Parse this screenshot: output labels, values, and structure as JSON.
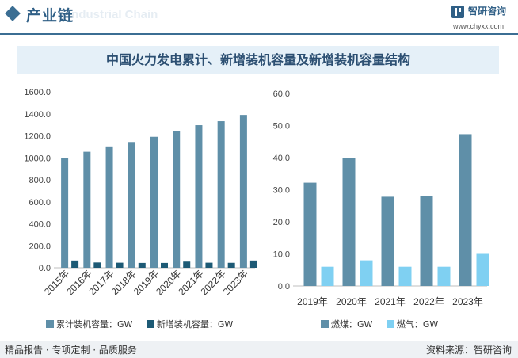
{
  "header": {
    "title": "产业链",
    "subtitle": "Industrial Chain",
    "brand": "智研咨询",
    "url": "www.chyxx.com"
  },
  "chart_title": "中国火力发电累计、新增装机容量及新增装机容量结构",
  "footer": {
    "left": "精品报告 · 专项定制 · 品质服务",
    "right": "资料来源：智研咨询"
  },
  "colors": {
    "accent": "#2f5f86",
    "bar_total": "#5f8fa8",
    "bar_new": "#1d5a75",
    "bar_coal": "#5f8fa8",
    "bar_gas": "#7fd0f2"
  },
  "chart_data": [
    {
      "type": "bar",
      "categories": [
        "2015年",
        "2016年",
        "2017年",
        "2018年",
        "2019年",
        "2020年",
        "2021年",
        "2022年",
        "2023年"
      ],
      "series": [
        {
          "name": "累计装机容量：GW",
          "values": [
            1000,
            1055,
            1104,
            1144,
            1191,
            1246,
            1297,
            1333,
            1390
          ]
        },
        {
          "name": "新增装机容量：GW",
          "values": [
            66,
            48,
            46,
            44,
            44,
            56,
            46,
            45,
            66
          ]
        }
      ],
      "yticks": [
        "0.0",
        "200.0",
        "400.0",
        "600.0",
        "800.0",
        "1000.0",
        "1200.0",
        "1400.0",
        "1600.0"
      ],
      "ylim": [
        0,
        1600
      ],
      "grid": false,
      "legend": "bottom"
    },
    {
      "type": "bar",
      "categories": [
        "2019年",
        "2020年",
        "2021年",
        "2022年",
        "2023年"
      ],
      "series": [
        {
          "name": "燃煤：GW",
          "values": [
            32.2,
            40.0,
            27.8,
            28.0,
            47.3
          ]
        },
        {
          "name": "燃气：GW",
          "values": [
            6.0,
            8.0,
            6.0,
            6.0,
            10.0
          ]
        }
      ],
      "yticks": [
        "0.0",
        "10.0",
        "20.0",
        "30.0",
        "40.0",
        "50.0",
        "60.0"
      ],
      "ylim": [
        0,
        60
      ],
      "grid": false,
      "legend": "bottom"
    }
  ]
}
